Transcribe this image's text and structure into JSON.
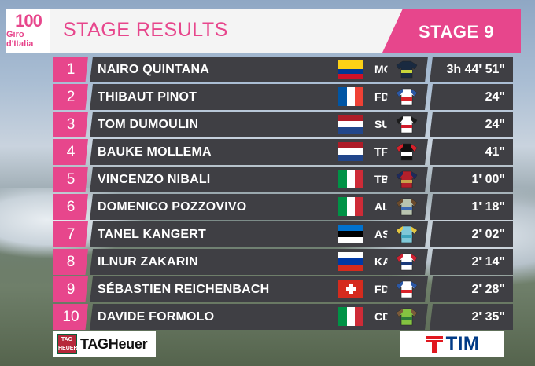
{
  "header": {
    "logo_num": "100",
    "logo_text": "Giro d'Italia",
    "title": "STAGE RESULTS",
    "stage": "STAGE 9"
  },
  "colors": {
    "accent": "#e7468c",
    "row_bg": "#3f3f44"
  },
  "results": [
    {
      "pos": "1",
      "name": "NAIRO QUINTANA",
      "team": "MOV",
      "time": "3h 44' 51\"",
      "flag": "colombia",
      "jersey": "movistar"
    },
    {
      "pos": "2",
      "name": "THIBAUT PINOT",
      "team": "FDJ",
      "time": "24\"",
      "flag": "france",
      "jersey": "fdj"
    },
    {
      "pos": "3",
      "name": "TOM DUMOULIN",
      "team": "SUN",
      "time": "24\"",
      "flag": "netherlands",
      "jersey": "sunweb"
    },
    {
      "pos": "4",
      "name": "BAUKE MOLLEMA",
      "team": "TFS",
      "time": "41\"",
      "flag": "netherlands",
      "jersey": "trek"
    },
    {
      "pos": "5",
      "name": "VINCENZO NIBALI",
      "team": "TBM",
      "time": "1' 00\"",
      "flag": "italy",
      "jersey": "bahrain"
    },
    {
      "pos": "6",
      "name": "DOMENICO POZZOVIVO",
      "team": "ALM",
      "time": "1' 18\"",
      "flag": "italy",
      "jersey": "ag2r"
    },
    {
      "pos": "7",
      "name": "TANEL KANGERT",
      "team": "AST",
      "time": "2' 02\"",
      "flag": "estonia",
      "jersey": "astana"
    },
    {
      "pos": "8",
      "name": "ILNUR ZAKARIN",
      "team": "KAT",
      "time": "2' 14\"",
      "flag": "russia",
      "jersey": "katusha"
    },
    {
      "pos": "9",
      "name": "SÉBASTIEN REICHENBACH",
      "team": "FDJ",
      "time": "2' 28\"",
      "flag": "switzerland",
      "jersey": "fdj"
    },
    {
      "pos": "10",
      "name": "DAVIDE FORMOLO",
      "team": "CDT",
      "time": "2' 35\"",
      "flag": "italy",
      "jersey": "cannondale"
    }
  ],
  "sponsors": {
    "left": "TAGHeuer",
    "left_shield": "TAG HEUER",
    "right": "TIM"
  }
}
